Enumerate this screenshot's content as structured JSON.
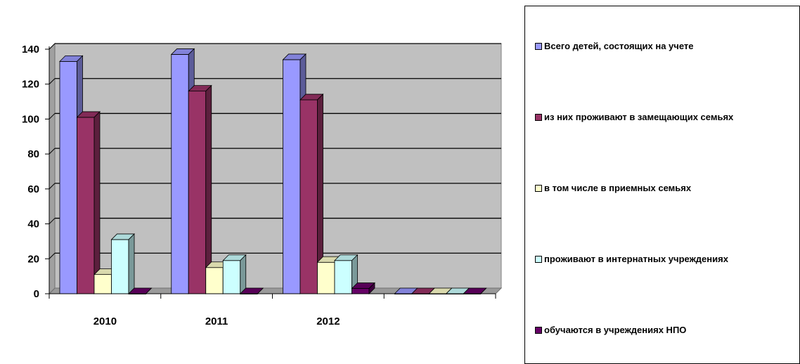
{
  "chart_data": {
    "type": "bar",
    "categories": [
      "2010",
      "2011",
      "2012",
      ""
    ],
    "series": [
      {
        "name": "Всего детей, состоящих на учете",
        "values": [
          133,
          137,
          134,
          0
        ]
      },
      {
        "name": "из них проживают в замещающих семьях",
        "values": [
          101,
          116,
          111,
          0
        ]
      },
      {
        "name": "в том числе в приемных семьях",
        "values": [
          11,
          15,
          18,
          0
        ]
      },
      {
        "name": "проживают в интернатных учреждениях",
        "values": [
          31,
          19,
          19,
          0
        ]
      },
      {
        "name": "обучаются в учреждениях НПО",
        "values": [
          0,
          0,
          3,
          0
        ]
      }
    ],
    "ylim": [
      0,
      140
    ],
    "yticks": [
      0,
      20,
      40,
      60,
      80,
      100,
      120,
      140
    ],
    "grid": true,
    "legend_position": "right",
    "colors": [
      "#9999FF",
      "#993366",
      "#FFFFCC",
      "#CCFFFF",
      "#660066"
    ],
    "plot_background": "#C0C0C0"
  }
}
